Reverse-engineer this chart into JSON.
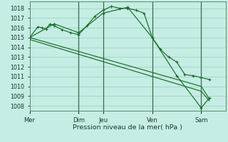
{
  "background_color": "#c5ede3",
  "grid_color": "#9dd4c8",
  "line_color": "#1a6b2a",
  "marker_color": "#1a6b2a",
  "xlabel": "Pression niveau de la mer( hPa )",
  "ylim": [
    1007.5,
    1018.7
  ],
  "yticks": [
    1008,
    1009,
    1010,
    1011,
    1012,
    1013,
    1014,
    1015,
    1016,
    1017,
    1018
  ],
  "day_labels": [
    "Mer",
    "Dim",
    "Jeu",
    "Ven",
    "Sam"
  ],
  "day_positions": [
    0,
    36,
    54,
    90,
    126
  ],
  "xlim": [
    0,
    144
  ],
  "series1_x": [
    0,
    6,
    9,
    12,
    15,
    18,
    24,
    30,
    36,
    42,
    48,
    54,
    60,
    66,
    72,
    78,
    84,
    90,
    96,
    102,
    108,
    114,
    120,
    126,
    132
  ],
  "series1_y": [
    1015.0,
    1016.1,
    1016.0,
    1015.9,
    1016.4,
    1016.2,
    1015.8,
    1015.5,
    1015.3,
    1016.2,
    1017.2,
    1017.8,
    1018.2,
    1018.0,
    1018.0,
    1017.8,
    1017.5,
    1015.0,
    1013.8,
    1013.0,
    1012.5,
    1011.2,
    1011.1,
    1010.9,
    1010.7
  ],
  "series2_x": [
    0,
    18,
    36,
    54,
    72,
    90,
    108,
    126,
    132
  ],
  "series2_y": [
    1015.0,
    1016.4,
    1015.5,
    1017.5,
    1018.1,
    1015.0,
    1011.1,
    1007.8,
    1008.8
  ],
  "series3_x": [
    0,
    126,
    132
  ],
  "series3_y": [
    1015.0,
    1010.0,
    1008.7
  ],
  "series4_x": [
    0,
    126,
    132
  ],
  "series4_y": [
    1014.8,
    1009.5,
    1008.5
  ]
}
